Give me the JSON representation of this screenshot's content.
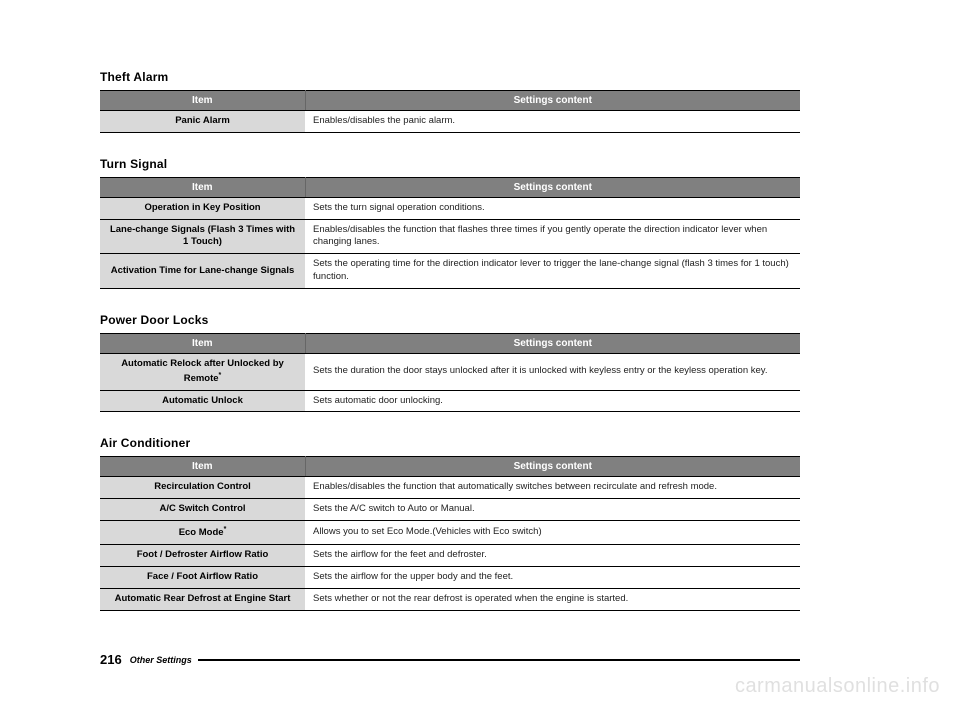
{
  "sections": [
    {
      "title": "Theft Alarm",
      "header_item": "Item",
      "header_content": "Settings content",
      "rows": [
        {
          "item": "Panic Alarm",
          "content": "Enables/disables the panic alarm."
        }
      ]
    },
    {
      "title": "Turn Signal",
      "header_item": "Item",
      "header_content": "Settings content",
      "rows": [
        {
          "item": "Operation in Key Position",
          "content": "Sets the turn signal operation conditions."
        },
        {
          "item": "Lane-change Signals (Flash 3 Times with 1 Touch)",
          "content": "Enables/disables the function that flashes three times if you gently operate the direction indicator lever when changing lanes."
        },
        {
          "item": "Activation Time for Lane-change Signals",
          "content": "Sets the operating time for the direction indicator lever to trigger the lane-change signal (flash 3 times for 1 touch) function."
        }
      ]
    },
    {
      "title": "Power Door Locks",
      "header_item": "Item",
      "header_content": "Settings content",
      "rows": [
        {
          "item": "Automatic Relock after Unlocked by Remote",
          "sup": "*",
          "content": "Sets the duration the door stays unlocked after it is unlocked with keyless entry or the keyless operation key."
        },
        {
          "item": "Automatic Unlock",
          "content": "Sets automatic door unlocking."
        }
      ]
    },
    {
      "title": "Air Conditioner",
      "header_item": "Item",
      "header_content": "Settings content",
      "rows": [
        {
          "item": "Recirculation Control",
          "content": "Enables/disables the function that automatically switches between recirculate and refresh mode."
        },
        {
          "item": "A/C Switch Control",
          "content": "Sets the A/C switch to Auto or Manual."
        },
        {
          "item": "Eco Mode",
          "sup": "*",
          "content": "Allows you to set Eco Mode.(Vehicles with Eco switch)"
        },
        {
          "item": "Foot / Defroster Airflow Ratio",
          "content": "Sets the airflow for the feet and defroster."
        },
        {
          "item": "Face / Foot Airflow Ratio",
          "content": "Sets the airflow for the upper body and the feet."
        },
        {
          "item": "Automatic Rear Defrost at Engine Start",
          "content": "Sets whether or not the rear defrost is operated when the engine is started."
        }
      ]
    }
  ],
  "footer": {
    "page_number": "216",
    "label": "Other Settings"
  },
  "watermark": "carmanualsonline.info",
  "colors": {
    "header_bg": "#808080",
    "header_fg": "#ffffff",
    "item_bg": "#d9d9d9",
    "border": "#000000",
    "watermark": "#e0e0e0"
  }
}
